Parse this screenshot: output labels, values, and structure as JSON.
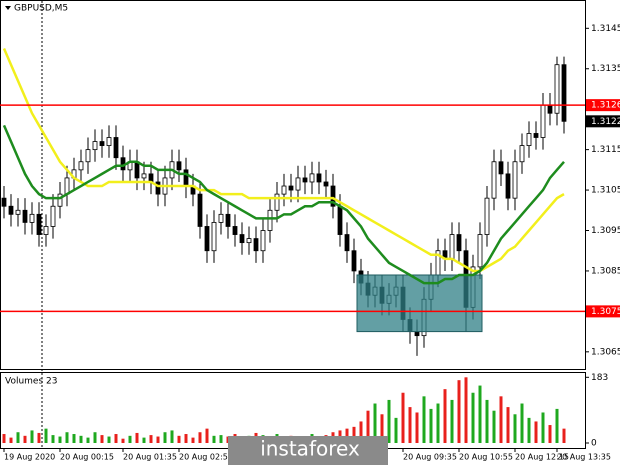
{
  "chart_data": [
    {
      "type": "candlestick",
      "title": "GBPUSD,M5",
      "categories": [
        "19 Aug 2020",
        null,
        null,
        null,
        null,
        null,
        null,
        null,
        "20 Aug 00:15",
        null,
        null,
        null,
        null,
        null,
        null,
        null,
        null,
        "20 Aug 01:35",
        null,
        null,
        null,
        null,
        null,
        null,
        null,
        "20 Aug 02:55",
        null,
        null,
        null,
        null,
        null,
        null,
        null,
        null,
        null,
        null,
        null,
        null,
        null,
        null,
        null,
        null,
        null,
        null,
        null,
        null,
        null,
        null,
        null,
        null,
        null,
        null,
        null,
        null,
        null,
        null,
        null,
        "20 Aug 09:35",
        null,
        null,
        null,
        null,
        null,
        null,
        null,
        "20 Aug 10:55",
        null,
        null,
        null,
        null,
        null,
        null,
        null,
        "20 Aug 12:15",
        null,
        null,
        null,
        null,
        null,
        "20 Aug 13:35",
        null
      ],
      "open": [
        1.3103,
        1.3101,
        1.3099,
        1.31,
        1.3097,
        1.3099,
        1.3094,
        1.3096,
        1.3101,
        1.3104,
        1.3108,
        1.311,
        1.3112,
        1.3115,
        1.3117,
        1.3116,
        1.3118,
        1.3113,
        1.311,
        1.3112,
        1.3108,
        1.3109,
        1.3107,
        1.3104,
        1.3108,
        1.3112,
        1.311,
        1.3106,
        1.3104,
        1.3096,
        1.309,
        1.3097,
        1.3099,
        1.3096,
        1.3094,
        1.3092,
        1.3093,
        1.309,
        1.3095,
        1.31,
        1.3104,
        1.3106,
        1.3105,
        1.3108,
        1.3107,
        1.3109,
        1.3107,
        1.3106,
        1.3101,
        1.3094,
        1.309,
        1.3085,
        1.3082,
        1.3079,
        1.3081,
        1.3077,
        1.3079,
        1.3081,
        1.3073,
        1.307,
        1.3069,
        1.3078,
        1.3084,
        1.309,
        1.3088,
        1.3094,
        1.309,
        1.3076,
        1.3086,
        1.3094,
        1.3103,
        1.3112,
        1.3109,
        1.3103,
        1.3112,
        1.3116,
        1.3119,
        1.3118,
        1.3126,
        1.3124,
        1.3136
      ],
      "high": [
        1.3106,
        1.3104,
        1.3103,
        1.3103,
        1.3102,
        1.3102,
        1.3099,
        1.3104,
        1.3107,
        1.3111,
        1.3113,
        1.3115,
        1.3118,
        1.312,
        1.312,
        1.3121,
        1.3121,
        1.3116,
        1.3115,
        1.3115,
        1.3112,
        1.3112,
        1.311,
        1.3111,
        1.3115,
        1.3115,
        1.3113,
        1.3109,
        1.3107,
        1.3099,
        1.31,
        1.3102,
        1.3102,
        1.3099,
        1.3097,
        1.3096,
        1.3096,
        1.3098,
        1.3103,
        1.3107,
        1.3109,
        1.3109,
        1.3111,
        1.3111,
        1.3112,
        1.3112,
        1.311,
        1.3109,
        1.3104,
        1.3097,
        1.3093,
        1.3088,
        1.3085,
        1.3084,
        1.3084,
        1.3082,
        1.3084,
        1.3084,
        1.3076,
        1.3073,
        1.3081,
        1.3087,
        1.3093,
        1.3093,
        1.3097,
        1.3097,
        1.3093,
        1.3089,
        1.3097,
        1.3106,
        1.3115,
        1.3115,
        1.3112,
        1.3115,
        1.3119,
        1.3122,
        1.3122,
        1.3129,
        1.3129,
        1.3138,
        1.3138
      ],
      "low": [
        1.3098,
        1.3096,
        1.3096,
        1.3094,
        1.3094,
        1.3091,
        1.3091,
        1.3093,
        1.3098,
        1.3101,
        1.3105,
        1.3107,
        1.3109,
        1.3112,
        1.3113,
        1.3113,
        1.311,
        1.3107,
        1.3107,
        1.3105,
        1.3105,
        1.3104,
        1.3101,
        1.3101,
        1.3105,
        1.3107,
        1.3103,
        1.3101,
        1.3093,
        1.3087,
        1.3087,
        1.3094,
        1.3093,
        1.3091,
        1.3089,
        1.3089,
        1.3087,
        1.3087,
        1.3092,
        1.3097,
        1.3101,
        1.3102,
        1.3102,
        1.3104,
        1.3104,
        1.3104,
        1.3103,
        1.3098,
        1.3091,
        1.3087,
        1.3082,
        1.3079,
        1.3076,
        1.3076,
        1.3074,
        1.3074,
        1.3076,
        1.307,
        1.3067,
        1.3064,
        1.3066,
        1.3075,
        1.3081,
        1.3085,
        1.3085,
        1.3087,
        1.307,
        1.3073,
        1.3083,
        1.3091,
        1.31,
        1.3106,
        1.31,
        1.31,
        1.3109,
        1.3113,
        1.3115,
        1.3115,
        1.3121,
        1.3121,
        1.3119
      ],
      "close": [
        1.3101,
        1.3099,
        1.31,
        1.3097,
        1.3099,
        1.3094,
        1.3096,
        1.3101,
        1.3104,
        1.3108,
        1.311,
        1.3112,
        1.3115,
        1.3117,
        1.3116,
        1.3118,
        1.3113,
        1.311,
        1.3112,
        1.3108,
        1.3109,
        1.3107,
        1.3104,
        1.3108,
        1.3112,
        1.311,
        1.3106,
        1.3104,
        1.3096,
        1.309,
        1.3097,
        1.3099,
        1.3096,
        1.3094,
        1.3092,
        1.3093,
        1.309,
        1.3095,
        1.31,
        1.3104,
        1.3106,
        1.3105,
        1.3108,
        1.3107,
        1.3109,
        1.3107,
        1.3106,
        1.3101,
        1.3094,
        1.309,
        1.3085,
        1.3082,
        1.3079,
        1.3081,
        1.3077,
        1.3079,
        1.3081,
        1.3073,
        1.307,
        1.3069,
        1.3078,
        1.3084,
        1.309,
        1.3088,
        1.3094,
        1.309,
        1.3076,
        1.3086,
        1.3094,
        1.3103,
        1.3112,
        1.3109,
        1.3103,
        1.3112,
        1.3116,
        1.3119,
        1.3118,
        1.3126,
        1.3124,
        1.3136,
        1.3122
      ],
      "up_color": "#ffffff",
      "down_color": "#000000",
      "series": [
        {
          "color": "#f2ef1c",
          "values": [
            1.314,
            1.3136,
            1.3132,
            1.3128,
            1.3124,
            1.3121,
            1.3118,
            1.3115,
            1.3112,
            1.311,
            1.3108,
            1.3107,
            1.3106,
            1.3106,
            1.3106,
            1.3107,
            1.3107,
            1.3107,
            1.3107,
            1.3107,
            1.3107,
            1.3107,
            1.3106,
            1.3106,
            1.3106,
            1.3106,
            1.3106,
            1.3106,
            1.3105,
            1.3105,
            1.3105,
            1.3104,
            1.3104,
            1.3104,
            1.3104,
            1.3103,
            1.3103,
            1.3103,
            1.3103,
            1.3103,
            1.3103,
            1.3103,
            1.3103,
            1.3103,
            1.3103,
            1.3103,
            1.3103,
            1.3103,
            1.3102,
            1.3101,
            1.31,
            1.3099,
            1.3098,
            1.3097,
            1.3096,
            1.3095,
            1.3094,
            1.3093,
            1.3092,
            1.3091,
            1.309,
            1.3089,
            1.3089,
            1.3088,
            1.3088,
            1.3087,
            1.3086,
            1.3085,
            1.3085,
            1.3086,
            1.3087,
            1.3088,
            1.309,
            1.3091,
            1.3093,
            1.3095,
            1.3097,
            1.3099,
            1.3101,
            1.3103,
            1.3104
          ]
        },
        {
          "color": "#1e8c1e",
          "values": [
            1.3121,
            1.3117,
            1.3113,
            1.3109,
            1.3106,
            1.3104,
            1.3103,
            1.3103,
            1.3103,
            1.3104,
            1.3105,
            1.3106,
            1.3107,
            1.3108,
            1.3109,
            1.311,
            1.3111,
            1.3111,
            1.3112,
            1.3112,
            1.3111,
            1.3111,
            1.311,
            1.311,
            1.311,
            1.3109,
            1.3109,
            1.3108,
            1.3107,
            1.3105,
            1.3104,
            1.3103,
            1.3102,
            1.3101,
            1.31,
            1.3099,
            1.3098,
            1.3098,
            1.3098,
            1.3098,
            1.3099,
            1.3099,
            1.31,
            1.3101,
            1.3101,
            1.3102,
            1.3102,
            1.3102,
            1.3101,
            1.31,
            1.3098,
            1.3096,
            1.3093,
            1.3091,
            1.3089,
            1.3087,
            1.3086,
            1.3085,
            1.3084,
            1.3083,
            1.3082,
            1.3082,
            1.3082,
            1.3083,
            1.3083,
            1.3084,
            1.3084,
            1.3084,
            1.3085,
            1.3087,
            1.309,
            1.3093,
            1.3095,
            1.3097,
            1.3099,
            1.3101,
            1.3103,
            1.3105,
            1.3108,
            1.311,
            1.3112
          ]
        }
      ],
      "ylim": [
        1.3061,
        1.3152
      ],
      "yticks": [
        1.3145,
        1.3135,
        1.3115,
        1.3105,
        1.3095,
        1.3085,
        1.3065
      ],
      "levels": [
        {
          "value": 1.3126,
          "color": "#ff0000"
        },
        {
          "value": 1.3075,
          "color": "#ff0000"
        }
      ],
      "last_price": 1.3122,
      "zone": {
        "from": 1.3084,
        "to": 1.307,
        "color": "#2f7f86"
      },
      "watermark": "instaforex"
    },
    {
      "type": "bar",
      "title": "Volumes 23",
      "values": [
        25,
        15,
        30,
        20,
        35,
        28,
        40,
        22,
        18,
        30,
        25,
        20,
        15,
        30,
        22,
        18,
        25,
        12,
        20,
        28,
        15,
        22,
        18,
        30,
        35,
        20,
        25,
        15,
        30,
        40,
        20,
        22,
        18,
        25,
        15,
        20,
        28,
        22,
        18,
        25,
        15,
        20,
        12,
        18,
        25,
        15,
        22,
        30,
        35,
        40,
        45,
        60,
        90,
        110,
        80,
        120,
        70,
        140,
        100,
        85,
        130,
        95,
        110,
        150,
        120,
        175,
        183,
        140,
        160,
        120,
        90,
        130,
        100,
        80,
        110,
        70,
        60,
        85,
        50,
        95,
        40
      ],
      "up_color": "#1fa81f",
      "down_color": "#e8201c",
      "ylim": [
        0,
        195
      ],
      "yticks": [
        0,
        183
      ]
    }
  ]
}
